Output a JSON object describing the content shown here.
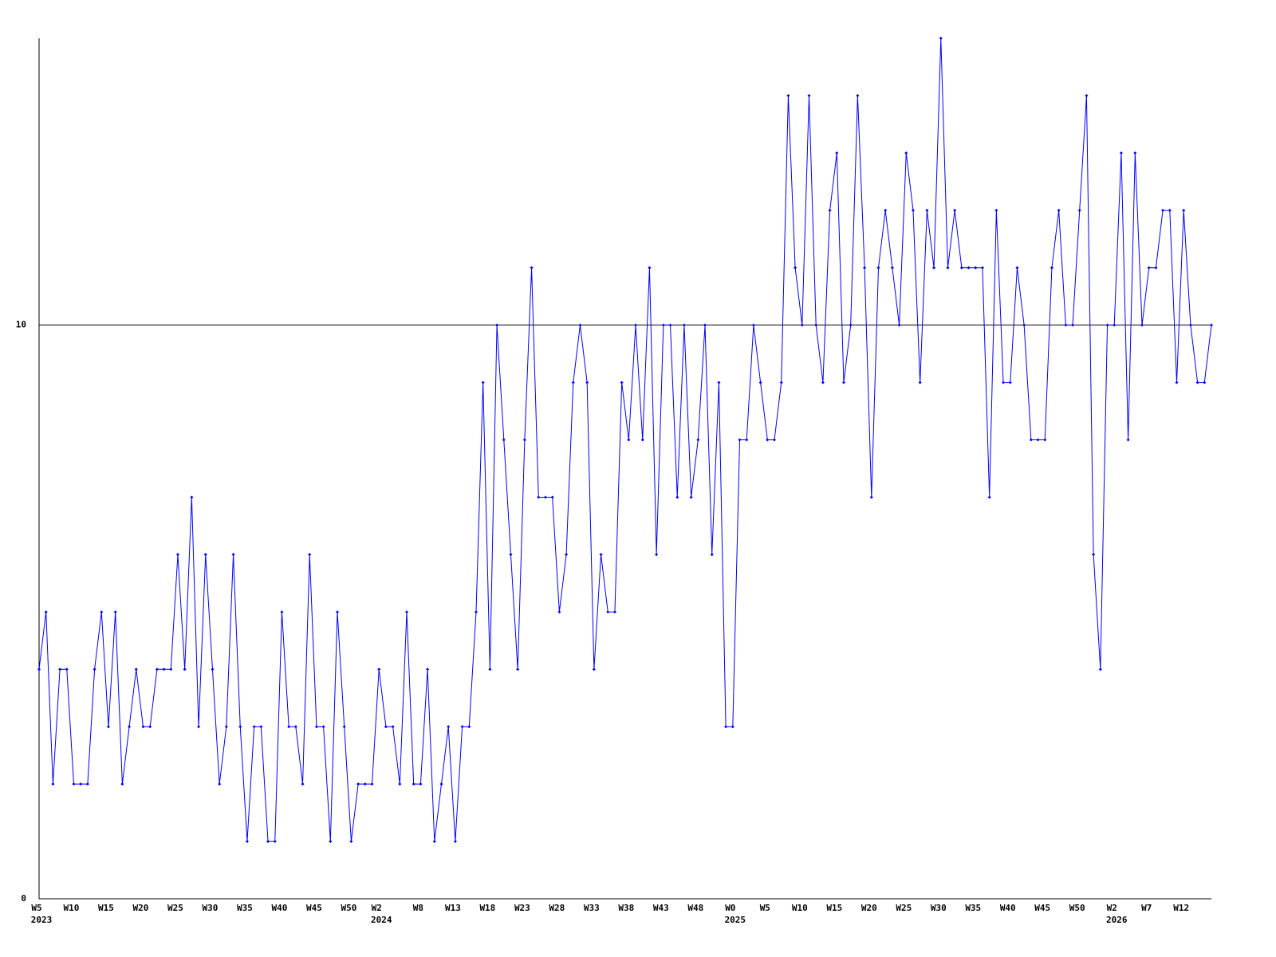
{
  "chart_data": {
    "type": "line",
    "color": "#0000ff",
    "ylim": [
      0,
      15
    ],
    "yticks": [
      0,
      10
    ],
    "grid": true,
    "categories": [
      "W5",
      null,
      null,
      null,
      null,
      "W10",
      null,
      null,
      null,
      null,
      "W15",
      null,
      null,
      null,
      null,
      "W20",
      null,
      null,
      null,
      null,
      "W25",
      null,
      null,
      null,
      null,
      "W30",
      null,
      null,
      null,
      null,
      "W35",
      null,
      null,
      null,
      null,
      "W40",
      null,
      null,
      null,
      null,
      "W45",
      null,
      null,
      null,
      null,
      "W50",
      null,
      null,
      null,
      "W2",
      null,
      null,
      null,
      null,
      null,
      "W8",
      null,
      null,
      null,
      null,
      "W13",
      null,
      null,
      null,
      null,
      "W18",
      null,
      null,
      null,
      null,
      "W23",
      null,
      null,
      null,
      null,
      "W28",
      null,
      null,
      null,
      null,
      "W33",
      null,
      null,
      null,
      null,
      "W38",
      null,
      null,
      null,
      null,
      "W43",
      null,
      null,
      null,
      null,
      "W48",
      null,
      null,
      null,
      null,
      "W0",
      null,
      null,
      null,
      null,
      "W5",
      null,
      null,
      null,
      null,
      "W10",
      null,
      null,
      null,
      null,
      "W15",
      null,
      null,
      null,
      null,
      "W20",
      null,
      null,
      null,
      null,
      "W25",
      null,
      null,
      null,
      null,
      "W30",
      null,
      null,
      null,
      null,
      "W35",
      null,
      null,
      null,
      null,
      "W40",
      null,
      null,
      null,
      null,
      "W45",
      null,
      null,
      null,
      null,
      "W50",
      null,
      null,
      null,
      null,
      "W2",
      null,
      null,
      null,
      null,
      "W7",
      null,
      null,
      null,
      null,
      "W12",
      null,
      null,
      null,
      null
    ],
    "category_years": [
      "2023",
      null,
      null,
      null,
      null,
      null,
      null,
      null,
      null,
      null,
      null,
      null,
      null,
      null,
      null,
      null,
      null,
      null,
      null,
      null,
      null,
      null,
      null,
      null,
      null,
      null,
      null,
      null,
      null,
      null,
      null,
      null,
      null,
      null,
      null,
      null,
      null,
      null,
      null,
      null,
      null,
      null,
      null,
      null,
      null,
      null,
      null,
      null,
      null,
      "2024",
      null,
      null,
      null,
      null,
      null,
      null,
      null,
      null,
      null,
      null,
      null,
      null,
      null,
      null,
      null,
      null,
      null,
      null,
      null,
      null,
      null,
      null,
      null,
      null,
      null,
      null,
      null,
      null,
      null,
      null,
      null,
      null,
      null,
      null,
      null,
      null,
      null,
      null,
      null,
      null,
      null,
      null,
      null,
      null,
      null,
      null,
      null,
      null,
      null,
      null,
      "2025",
      null,
      null,
      null,
      null,
      null,
      null,
      null,
      null,
      null,
      null,
      null,
      null,
      null,
      null,
      null,
      null,
      null,
      null,
      null,
      null,
      null,
      null,
      null,
      null,
      null,
      null,
      null,
      null,
      null,
      null,
      null,
      null,
      null,
      null,
      null,
      null,
      null,
      null,
      null,
      null,
      null,
      null,
      null,
      null,
      null,
      null,
      null,
      null,
      null,
      null,
      null,
      null,
      null,
      null,
      "2026",
      null,
      null,
      null,
      null,
      null,
      null,
      null,
      null,
      null,
      null,
      null,
      null,
      null,
      null
    ],
    "values": [
      4,
      5,
      2,
      4,
      4,
      2,
      2,
      2,
      4,
      5,
      3,
      5,
      2,
      3,
      4,
      3,
      3,
      4,
      4,
      4,
      6,
      4,
      7,
      3,
      6,
      4,
      2,
      3,
      6,
      3,
      1,
      3,
      3,
      1,
      1,
      5,
      3,
      3,
      2,
      6,
      3,
      3,
      1,
      5,
      3,
      1,
      2,
      2,
      2,
      4,
      3,
      3,
      2,
      5,
      2,
      2,
      4,
      1,
      2,
      3,
      1,
      3,
      3,
      5,
      9,
      4,
      10,
      8,
      6,
      4,
      8,
      11,
      7,
      7,
      7,
      5,
      6,
      9,
      10,
      9,
      4,
      6,
      5,
      5,
      9,
      8,
      10,
      8,
      11,
      6,
      10,
      10,
      7,
      10,
      7,
      8,
      10,
      6,
      9,
      3,
      3,
      8,
      8,
      10,
      9,
      8,
      8,
      9,
      14,
      11,
      10,
      14,
      10,
      9,
      12,
      13,
      9,
      10,
      14,
      11,
      7,
      11,
      12,
      11,
      10,
      13,
      12,
      9,
      12,
      11,
      15,
      11,
      12,
      11,
      11,
      11,
      11,
      7,
      12,
      9,
      9,
      11,
      10,
      8,
      8,
      8,
      11,
      12,
      10,
      10,
      12,
      14,
      6,
      4,
      10,
      10,
      13,
      8,
      13,
      10,
      11,
      11,
      12,
      12,
      9,
      12,
      10,
      9,
      9,
      10
    ]
  }
}
